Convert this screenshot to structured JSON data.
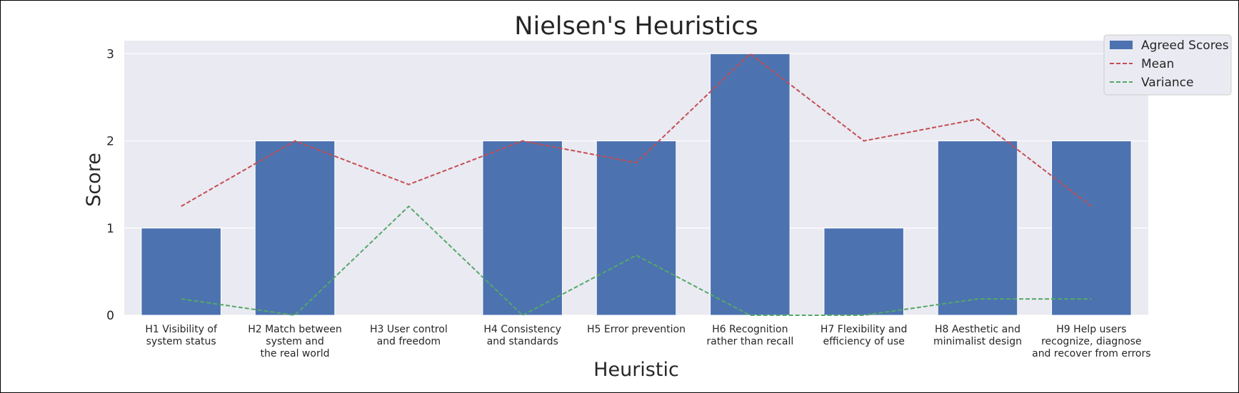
{
  "chart_data": {
    "type": "bar",
    "title": "Nielsen's Heuristics",
    "xlabel": "Heuristic",
    "ylabel": "Score",
    "ylim": [
      0,
      3.15
    ],
    "yticks": [
      0,
      1,
      2,
      3
    ],
    "categories": [
      [
        "H1 Visibility of",
        "system status"
      ],
      [
        "H2 Match between",
        "system and",
        "the real world"
      ],
      [
        "H3 User control",
        "and freedom"
      ],
      [
        "H4 Consistency",
        "and standards"
      ],
      [
        "H5 Error prevention"
      ],
      [
        "H6 Recognition",
        "rather than recall"
      ],
      [
        "H7 Flexibility and",
        "efficiency of use"
      ],
      [
        "H8 Aesthetic and",
        "minimalist design"
      ],
      [
        "H9 Help users",
        "recognize, diagnose",
        "and recover from errors"
      ]
    ],
    "grid": true,
    "legend_position": "top-right",
    "series": [
      {
        "name": "Agreed Scores",
        "kind": "bar",
        "color": "#4c72b0",
        "values": [
          1,
          2,
          0,
          2,
          2,
          3,
          1,
          2,
          2
        ]
      },
      {
        "name": "Mean",
        "kind": "line",
        "style": "dashed",
        "color": "#c44e52",
        "values": [
          1.25,
          2,
          1.5,
          2,
          1.75,
          3,
          2,
          2.25,
          1.25
        ]
      },
      {
        "name": "Variance",
        "kind": "line",
        "style": "dashed",
        "color": "#55a868",
        "values": [
          0.1875,
          0,
          1.25,
          0,
          0.6875,
          0,
          0,
          0.1875,
          0.1875
        ]
      }
    ],
    "colors": {
      "plot_background": "#eaeaf2",
      "grid": "#ffffff"
    }
  }
}
